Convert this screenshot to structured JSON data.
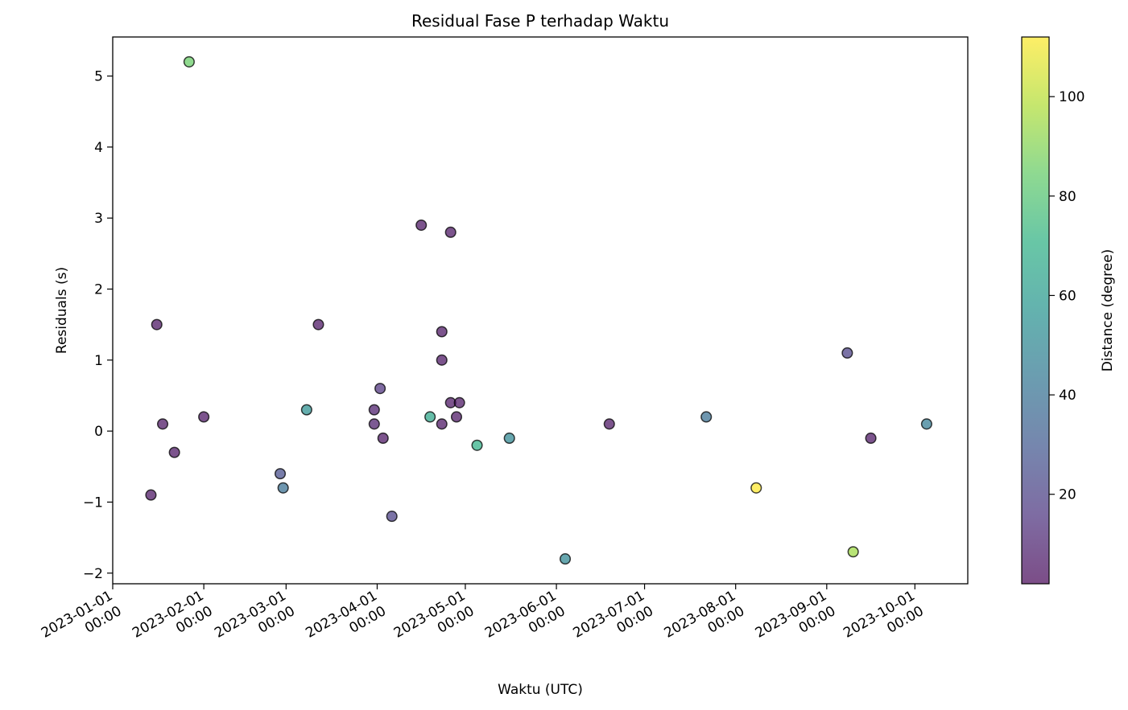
{
  "chart_data": {
    "type": "scatter",
    "title": "Residual Fase P terhadap Waktu",
    "xlabel": "Waktu (UTC)",
    "ylabel": "Residuals (s)",
    "colorbar_label": "Distance (degree)",
    "x_range": [
      "2023-01-01",
      "2023-10-19"
    ],
    "ylim": [
      -2.15,
      5.55
    ],
    "color_range": [
      2,
      112
    ],
    "colormap": "viridis",
    "marker_edge_color": "#000000",
    "marker_alpha": 0.7,
    "grid": false,
    "x_ticks": [
      {
        "date": "2023-01-01",
        "line1": "2023-01-01",
        "line2": "00:00"
      },
      {
        "date": "2023-02-01",
        "line1": "2023-02-01",
        "line2": "00:00"
      },
      {
        "date": "2023-03-01",
        "line1": "2023-03-01",
        "line2": "00:00"
      },
      {
        "date": "2023-04-01",
        "line1": "2023-04-01",
        "line2": "00:00"
      },
      {
        "date": "2023-05-01",
        "line1": "2023-05-01",
        "line2": "00:00"
      },
      {
        "date": "2023-06-01",
        "line1": "2023-06-01",
        "line2": "00:00"
      },
      {
        "date": "2023-07-01",
        "line1": "2023-07-01",
        "line2": "00:00"
      },
      {
        "date": "2023-08-01",
        "line1": "2023-08-01",
        "line2": "00:00"
      },
      {
        "date": "2023-09-01",
        "line1": "2023-09-01",
        "line2": "00:00"
      },
      {
        "date": "2023-10-01",
        "line1": "2023-10-01",
        "line2": "00:00"
      }
    ],
    "y_ticks": [
      {
        "value": -2,
        "label": "−2"
      },
      {
        "value": -1,
        "label": "−1"
      },
      {
        "value": 0,
        "label": "0"
      },
      {
        "value": 1,
        "label": "1"
      },
      {
        "value": 2,
        "label": "2"
      },
      {
        "value": 3,
        "label": "3"
      },
      {
        "value": 4,
        "label": "4"
      },
      {
        "value": 5,
        "label": "5"
      }
    ],
    "colorbar_ticks": [
      {
        "value": 20,
        "label": "20"
      },
      {
        "value": 40,
        "label": "40"
      },
      {
        "value": 60,
        "label": "60"
      },
      {
        "value": 80,
        "label": "80"
      },
      {
        "value": 100,
        "label": "100"
      }
    ],
    "points": [
      {
        "x": "2023-01-14",
        "y": -0.9,
        "distance": 5
      },
      {
        "x": "2023-01-16",
        "y": 1.5,
        "distance": 5
      },
      {
        "x": "2023-01-18",
        "y": 0.1,
        "distance": 5
      },
      {
        "x": "2023-01-22",
        "y": -0.3,
        "distance": 5
      },
      {
        "x": "2023-01-27",
        "y": 5.2,
        "distance": 85
      },
      {
        "x": "2023-02-01",
        "y": 0.2,
        "distance": 5
      },
      {
        "x": "2023-02-27",
        "y": -0.6,
        "distance": 25
      },
      {
        "x": "2023-02-28",
        "y": -0.8,
        "distance": 40
      },
      {
        "x": "2023-03-08",
        "y": 0.3,
        "distance": 55
      },
      {
        "x": "2023-03-12",
        "y": 1.5,
        "distance": 5
      },
      {
        "x": "2023-03-31",
        "y": 0.3,
        "distance": 8
      },
      {
        "x": "2023-03-31",
        "y": 0.1,
        "distance": 8
      },
      {
        "x": "2023-04-02",
        "y": 0.6,
        "distance": 15
      },
      {
        "x": "2023-04-03",
        "y": -0.1,
        "distance": 5
      },
      {
        "x": "2023-04-06",
        "y": -1.2,
        "distance": 20
      },
      {
        "x": "2023-04-16",
        "y": 2.9,
        "distance": 5
      },
      {
        "x": "2023-04-19",
        "y": 0.2,
        "distance": 65
      },
      {
        "x": "2023-04-23",
        "y": 1.4,
        "distance": 5
      },
      {
        "x": "2023-04-23",
        "y": 1.0,
        "distance": 5
      },
      {
        "x": "2023-04-23",
        "y": 0.1,
        "distance": 5
      },
      {
        "x": "2023-04-26",
        "y": 2.8,
        "distance": 5
      },
      {
        "x": "2023-04-26",
        "y": 0.4,
        "distance": 5
      },
      {
        "x": "2023-04-28",
        "y": 0.2,
        "distance": 5
      },
      {
        "x": "2023-04-29",
        "y": 0.4,
        "distance": 5
      },
      {
        "x": "2023-05-05",
        "y": -0.2,
        "distance": 70
      },
      {
        "x": "2023-05-16",
        "y": -0.1,
        "distance": 50
      },
      {
        "x": "2023-06-04",
        "y": -1.8,
        "distance": 50
      },
      {
        "x": "2023-06-19",
        "y": 0.1,
        "distance": 5
      },
      {
        "x": "2023-07-22",
        "y": 0.2,
        "distance": 40
      },
      {
        "x": "2023-08-08",
        "y": -0.8,
        "distance": 112
      },
      {
        "x": "2023-09-08",
        "y": 1.1,
        "distance": 20
      },
      {
        "x": "2023-09-10",
        "y": -1.7,
        "distance": 95
      },
      {
        "x": "2023-09-16",
        "y": -0.1,
        "distance": 5
      },
      {
        "x": "2023-10-05",
        "y": 0.1,
        "distance": 45
      }
    ]
  }
}
